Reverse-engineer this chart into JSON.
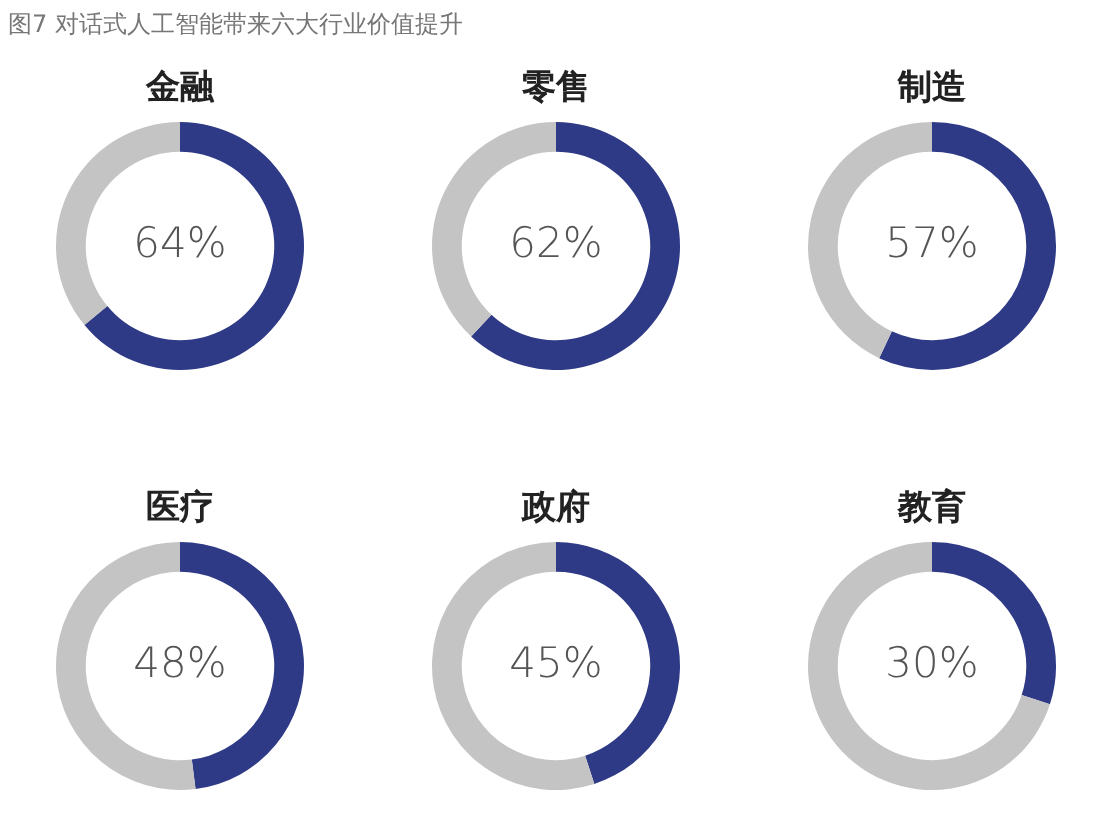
{
  "chart_data": [
    {
      "type": "other",
      "title": "图7 对话式人工智能带来六大行业价值提升"
    },
    {
      "type": "donut",
      "title": "金融",
      "categories": [
        null,
        null
      ],
      "values": [
        64,
        36
      ],
      "colors": [
        "#2e3a86",
        "#c4c4c4"
      ],
      "value_labels": [
        "64%",
        null
      ]
    },
    {
      "type": "donut",
      "title": "零售",
      "categories": [
        null,
        null
      ],
      "values": [
        62,
        38
      ],
      "colors": [
        "#2e3a86",
        "#c4c4c4"
      ],
      "value_labels": [
        "62%",
        null
      ]
    },
    {
      "type": "donut",
      "title": "制造",
      "categories": [
        null,
        null
      ],
      "values": [
        57,
        43
      ],
      "colors": [
        "#2e3a86",
        "#c4c4c4"
      ],
      "value_labels": [
        "57%",
        null
      ]
    },
    {
      "type": "donut",
      "title": "医疗",
      "categories": [
        null,
        null
      ],
      "values": [
        48,
        52
      ],
      "colors": [
        "#2e3a86",
        "#c4c4c4"
      ],
      "value_labels": [
        "48%",
        null
      ]
    },
    {
      "type": "donut",
      "title": "政府",
      "categories": [
        null,
        null
      ],
      "values": [
        45,
        55
      ],
      "colors": [
        "#2e3a86",
        "#c4c4c4"
      ],
      "value_labels": [
        "45%",
        null
      ]
    },
    {
      "type": "donut",
      "title": "教育",
      "categories": [
        null,
        null
      ],
      "values": [
        30,
        70
      ],
      "colors": [
        "#2e3a86",
        "#c4c4c4"
      ],
      "value_labels": [
        "30%",
        null
      ]
    }
  ]
}
